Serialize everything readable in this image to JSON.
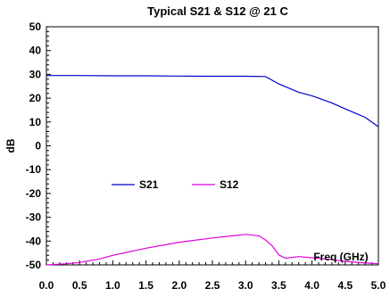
{
  "chart_data": {
    "type": "line",
    "title": "Typical S21 & S12 @ 21 C",
    "xlabel": "Freq (GHz)",
    "ylabel": "dB",
    "xlim": [
      0.0,
      5.0
    ],
    "ylim": [
      -50,
      50
    ],
    "x_ticks": [
      "0.0",
      "0.5",
      "1.0",
      "1.5",
      "2.0",
      "2.5",
      "3.0",
      "3.5",
      "4.0",
      "4.5",
      "5.0"
    ],
    "y_ticks": [
      "50",
      "40",
      "30",
      "20",
      "10",
      "0",
      "-10",
      "-20",
      "-30",
      "-40",
      "-50"
    ],
    "grid": false,
    "legend_position": "center-left",
    "series": [
      {
        "name": "S21",
        "color": "#0000cc",
        "x": [
          0.0,
          0.5,
          1.0,
          1.5,
          2.0,
          2.5,
          3.0,
          3.3,
          3.5,
          3.8,
          4.0,
          4.3,
          4.5,
          4.8,
          5.0
        ],
        "y": [
          29.5,
          29.5,
          29.4,
          29.4,
          29.3,
          29.2,
          29.2,
          29.1,
          26.0,
          22.5,
          21.0,
          18.0,
          15.5,
          12.0,
          8.0
        ]
      },
      {
        "name": "S12",
        "color": "#dd00dd",
        "x": [
          0.0,
          0.3,
          0.5,
          0.8,
          1.0,
          1.5,
          2.0,
          2.5,
          2.8,
          3.0,
          3.2,
          3.3,
          3.4,
          3.5,
          3.6,
          3.8,
          4.0,
          4.2,
          4.5,
          4.8,
          5.0
        ],
        "y": [
          -50.0,
          -49.5,
          -49.0,
          -47.5,
          -46.0,
          -43.0,
          -40.5,
          -38.7,
          -37.8,
          -37.2,
          -37.8,
          -39.5,
          -42.0,
          -45.8,
          -47.2,
          -46.5,
          -47.0,
          -47.5,
          -48.5,
          -49.2,
          -49.5
        ]
      }
    ]
  }
}
